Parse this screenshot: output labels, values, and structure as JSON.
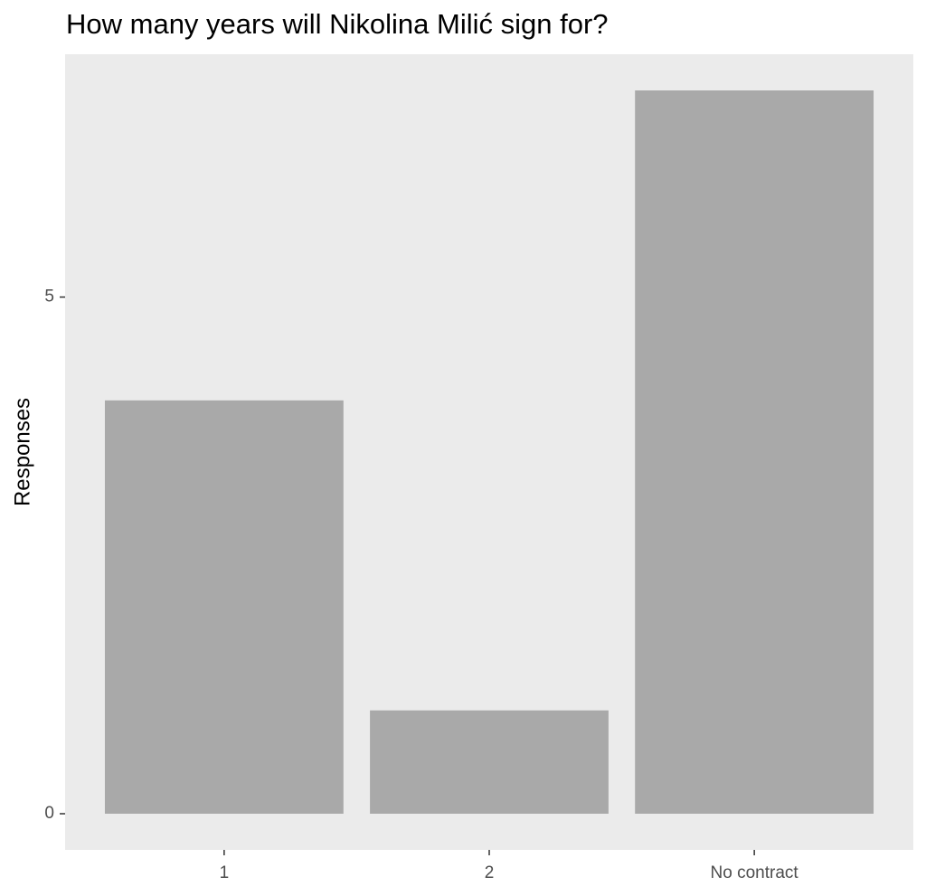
{
  "chart_data": {
    "type": "bar",
    "title": "How many years will Nikolina Milić sign for?",
    "y_label": "Responses",
    "categories": [
      "1",
      "2",
      "No contract"
    ],
    "values": [
      4,
      1,
      7
    ],
    "color": "#a9a9a9",
    "ylim": [
      -0.35,
      7.35
    ],
    "yticks": [
      0,
      5
    ],
    "grid": false
  }
}
